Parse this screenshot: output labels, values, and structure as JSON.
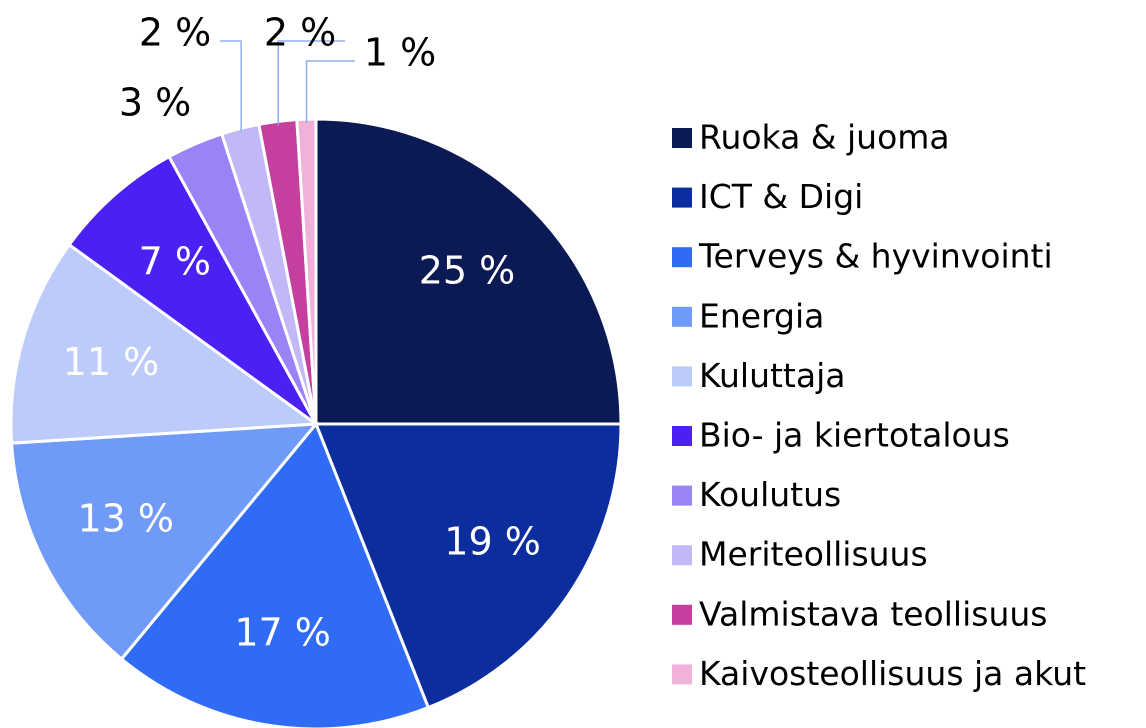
{
  "chart_data": {
    "type": "pie",
    "categories": [
      "Ruoka & juoma",
      "ICT & Digi",
      "Terveys & hyvinvointi",
      "Energia",
      "Kuluttaja",
      "Bio- ja kiertotalous",
      "Koulutus",
      "Meriteollisuus",
      "Valmistava teollisuus",
      "Kaivosteollisuus ja akut"
    ],
    "values": [
      25,
      19,
      17,
      13,
      11,
      7,
      3,
      2,
      2,
      1
    ],
    "value_labels": [
      "25 %",
      "19 %",
      "17 %",
      "13 %",
      "11 %",
      "7 %",
      "3 %",
      "2 %",
      "2 %",
      "1 %"
    ],
    "colors": [
      "#0b1a54",
      "#0b2d9e",
      "#2f6bf5",
      "#6f9af7",
      "#bccbfa",
      "#4a20f3",
      "#9a82f7",
      "#c3b8f7",
      "#c43f9e",
      "#f0b2d8"
    ],
    "legend": "right"
  }
}
